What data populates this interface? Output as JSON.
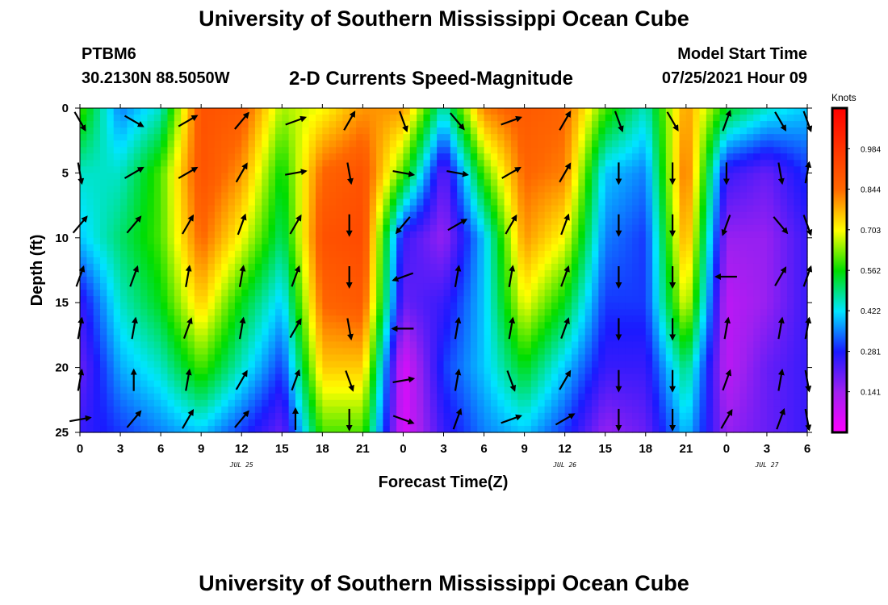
{
  "page": {
    "title_top": "University of Southern Mississippi Ocean Cube",
    "title_bottom": "University of Southern Mississippi Ocean Cube",
    "station_id": "PTBM6",
    "station_coords": "30.2130N  88.5050W",
    "chart_title": "2-D Currents Speed-Magnitude",
    "model_start_label": "Model Start Time",
    "model_start_value": "07/25/2021 Hour 09"
  },
  "chart_data": {
    "type": "heatmap",
    "title": "2-D Currents Speed-Magnitude",
    "xlabel": "Forecast Time(Z)",
    "ylabel": "Depth (ft)",
    "x_tick_labels": [
      "0",
      "3",
      "6",
      "9",
      "12",
      "15",
      "18",
      "21",
      "0",
      "3",
      "6",
      "9",
      "12",
      "15",
      "18",
      "21",
      "0",
      "3",
      "6"
    ],
    "x_tick_hours": [
      0,
      3,
      6,
      9,
      12,
      15,
      18,
      21,
      24,
      27,
      30,
      33,
      36,
      39,
      42,
      45,
      48,
      51,
      54
    ],
    "date_labels": [
      {
        "hour": 12,
        "text": "JUL 25"
      },
      {
        "hour": 36,
        "text": "JUL 26"
      },
      {
        "hour": 51,
        "text": "JUL 27"
      }
    ],
    "xlim": [
      0,
      54
    ],
    "ylim": [
      0,
      25
    ],
    "y_ticks": [
      0,
      5,
      10,
      15,
      20,
      25
    ],
    "y_inverted": true,
    "colorbar": {
      "title": "Knots",
      "tick_labels": [
        "0.984",
        "0.844",
        "0.703",
        "0.562",
        "0.422",
        "0.281",
        "0.141"
      ],
      "tick_values": [
        0.984,
        0.844,
        0.703,
        0.562,
        0.422,
        0.281,
        0.141
      ],
      "range": [
        0.0,
        1.125
      ],
      "stops": [
        {
          "v": 0.0,
          "color": "#ff00ff"
        },
        {
          "v": 0.14,
          "color": "#a020f0"
        },
        {
          "v": 0.28,
          "color": "#1a1aff"
        },
        {
          "v": 0.42,
          "color": "#00e5ff"
        },
        {
          "v": 0.56,
          "color": "#00dd00"
        },
        {
          "v": 0.7,
          "color": "#ffff00"
        },
        {
          "v": 0.845,
          "color": "#ff6600"
        },
        {
          "v": 1.125,
          "color": "#ff0000"
        }
      ]
    },
    "speed_grid": {
      "hours": [
        0,
        3,
        6,
        9,
        12,
        15,
        18,
        21,
        24,
        27,
        30,
        33,
        36,
        39,
        42,
        45,
        48,
        51,
        54
      ],
      "depths": [
        0,
        5,
        10,
        15,
        20,
        25
      ],
      "values": [
        [
          0.6,
          0.35,
          0.45,
          0.9,
          0.88,
          0.65,
          0.7,
          0.8,
          0.8,
          0.45,
          0.82,
          0.88,
          0.85,
          0.6,
          0.45,
          0.8,
          0.55,
          0.45,
          0.4
        ],
        [
          0.45,
          0.45,
          0.6,
          0.9,
          0.8,
          0.55,
          0.85,
          0.9,
          0.6,
          0.2,
          0.6,
          0.85,
          0.82,
          0.4,
          0.35,
          0.85,
          0.25,
          0.2,
          0.3
        ],
        [
          0.4,
          0.5,
          0.6,
          0.85,
          0.7,
          0.5,
          0.9,
          0.92,
          0.25,
          0.15,
          0.4,
          0.8,
          0.7,
          0.35,
          0.3,
          0.8,
          0.15,
          0.15,
          0.25
        ],
        [
          0.25,
          0.45,
          0.55,
          0.75,
          0.55,
          0.4,
          0.85,
          0.88,
          0.2,
          0.25,
          0.4,
          0.7,
          0.55,
          0.3,
          0.3,
          0.7,
          0.1,
          0.15,
          0.25
        ],
        [
          0.2,
          0.38,
          0.45,
          0.6,
          0.45,
          0.3,
          0.75,
          0.75,
          0.05,
          0.3,
          0.4,
          0.55,
          0.4,
          0.25,
          0.25,
          0.5,
          0.1,
          0.2,
          0.25
        ],
        [
          0.25,
          0.3,
          0.35,
          0.4,
          0.3,
          0.2,
          0.6,
          0.6,
          0.05,
          0.25,
          0.35,
          0.4,
          0.3,
          0.15,
          0.2,
          0.4,
          0.15,
          0.2,
          0.25
        ]
      ]
    },
    "vectors": {
      "hours": [
        0,
        4,
        8,
        12,
        16,
        20,
        24,
        28,
        32,
        36,
        40,
        44,
        48,
        52,
        54
      ],
      "depths": [
        1,
        5,
        9,
        13,
        17,
        21,
        24
      ],
      "directions_deg": [
        [
          150,
          120,
          60,
          40,
          70,
          30,
          160,
          140,
          70,
          30,
          160,
          150,
          20,
          150,
          160
        ],
        [
          170,
          60,
          60,
          30,
          80,
          170,
          100,
          100,
          60,
          30,
          180,
          180,
          180,
          170,
          10
        ],
        [
          40,
          40,
          30,
          20,
          30,
          180,
          220,
          60,
          30,
          20,
          180,
          180,
          200,
          140,
          160
        ],
        [
          20,
          20,
          10,
          10,
          20,
          180,
          250,
          10,
          10,
          20,
          180,
          180,
          270,
          30,
          20
        ],
        [
          10,
          10,
          20,
          10,
          30,
          170,
          270,
          10,
          10,
          20,
          180,
          180,
          10,
          10,
          10
        ],
        [
          10,
          0,
          10,
          30,
          20,
          160,
          80,
          10,
          160,
          30,
          180,
          180,
          20,
          10,
          170
        ],
        [
          80,
          40,
          30,
          40,
          0,
          180,
          110,
          20,
          70,
          60,
          180,
          180,
          30,
          20,
          170
        ]
      ]
    }
  }
}
